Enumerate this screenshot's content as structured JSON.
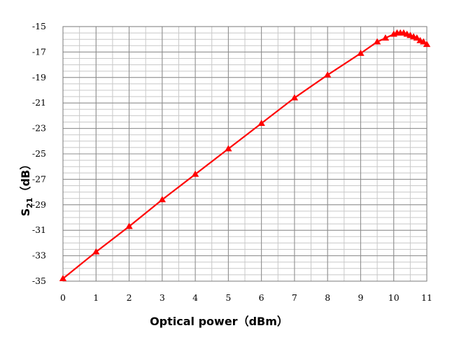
{
  "chart_data": {
    "type": "line",
    "xlabel": "Optical power（dBm）",
    "ylabel_main": "S",
    "ylabel_sub": "21",
    "ylabel_unit": "（dB）",
    "xlim": [
      0,
      11
    ],
    "ylim": [
      -35,
      -15
    ],
    "x_ticks": [
      "0",
      "1",
      "2",
      "3",
      "4",
      "5",
      "6",
      "7",
      "8",
      "9",
      "10",
      "11"
    ],
    "y_ticks": [
      "-15",
      "-17",
      "-19",
      "-21",
      "-23",
      "-25",
      "-27",
      "-29",
      "-31",
      "-33",
      "-35"
    ],
    "grid": true,
    "series": [
      {
        "color": "#ff0000",
        "marker": "triangle",
        "x": [
          0,
          1,
          2,
          3,
          4,
          5,
          6,
          7,
          8,
          9,
          9.5,
          9.75,
          10,
          10.1,
          10.2,
          10.3,
          10.4,
          10.5,
          10.6,
          10.7,
          10.8,
          10.9,
          11
        ],
        "y": [
          -34.8,
          -32.7,
          -30.7,
          -28.6,
          -26.6,
          -24.6,
          -22.6,
          -20.6,
          -18.8,
          -17.1,
          -16.2,
          -15.9,
          -15.6,
          -15.5,
          -15.5,
          -15.5,
          -15.6,
          -15.7,
          -15.8,
          -15.9,
          -16.1,
          -16.2,
          -16.4
        ]
      }
    ]
  }
}
